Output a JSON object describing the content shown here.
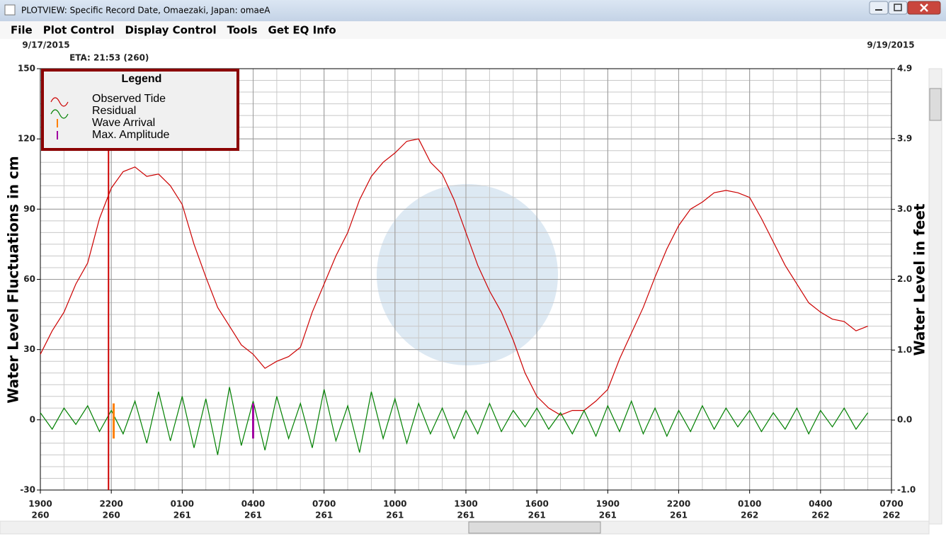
{
  "window": {
    "title": "PLOTVIEW: Specific Record Date, Omaezaki, Japan: omaeA",
    "menu": [
      "File",
      "Plot Control",
      "Display Control",
      "Tools",
      "Get EQ Info"
    ]
  },
  "chart_data": {
    "type": "line",
    "start_date": "9/17/2015",
    "end_date": "9/19/2015",
    "legend_title": "Legend",
    "y_label": "Water Level Fluctuations in cm",
    "y2_label": "Water Level in feet",
    "eta": {
      "label": "ETA: 21:53 (260)",
      "x": 2.883,
      "color": "#cc0000"
    },
    "x": [
      0,
      0.5,
      1,
      1.5,
      2,
      2.5,
      3,
      3.5,
      4,
      4.5,
      5,
      5.5,
      6,
      6.5,
      7,
      7.5,
      8,
      8.5,
      9,
      9.5,
      10,
      10.5,
      11,
      11.5,
      12,
      12.5,
      13,
      13.5,
      14,
      14.5,
      15,
      15.5,
      16,
      16.5,
      17,
      17.5,
      18,
      18.5,
      19,
      19.5,
      20,
      20.5,
      21,
      21.5,
      22,
      22.5,
      23,
      23.5,
      24,
      24.5,
      25,
      25.5,
      26,
      26.5,
      27,
      27.5,
      28,
      28.5,
      29,
      29.5,
      30,
      30.5,
      31,
      31.5,
      32,
      32.5,
      33,
      33.5,
      34,
      34.5,
      35
    ],
    "series": [
      {
        "name": "Observed Tide",
        "color": "#cc0000",
        "values": [
          28,
          38,
          46,
          58,
          67,
          86,
          99,
          106,
          108,
          104,
          105,
          100,
          92,
          75,
          61,
          48,
          40,
          32,
          28,
          22,
          25,
          27,
          31,
          46,
          58,
          70,
          80,
          94,
          104,
          110,
          114,
          119,
          120,
          110,
          105,
          94,
          80,
          66,
          55,
          46,
          34,
          20,
          10,
          5,
          2,
          4,
          4,
          8,
          13,
          26,
          37,
          48,
          61,
          73,
          83,
          90,
          93,
          97,
          98,
          97,
          95,
          86,
          76,
          66,
          58,
          50,
          46,
          43,
          42,
          38,
          40
        ]
      },
      {
        "name": "Residual",
        "color": "#008000",
        "values": [
          3,
          -4,
          5,
          -2,
          6,
          -5,
          4,
          -6,
          8,
          -10,
          12,
          -9,
          10,
          -12,
          9,
          -15,
          14,
          -11,
          8,
          -13,
          10,
          -8,
          7,
          -12,
          13,
          -9,
          6,
          -14,
          12,
          -8,
          9,
          -10,
          7,
          -6,
          5,
          -8,
          4,
          -6,
          7,
          -5,
          4,
          -3,
          5,
          -4,
          3,
          -6,
          4,
          -7,
          6,
          -5,
          8,
          -6,
          5,
          -7,
          4,
          -5,
          6,
          -4,
          5,
          -3,
          4,
          -5,
          3,
          -4,
          5,
          -6,
          4,
          -3,
          5,
          -4,
          3
        ]
      }
    ],
    "markers": [
      {
        "name": "Wave Arrival",
        "color": "#ff8000",
        "x": 3.1,
        "values": [
          7,
          -8
        ]
      },
      {
        "name": "Max. Amplitude",
        "color": "#a000a0",
        "x": 9.0,
        "values": [
          7,
          -8
        ]
      }
    ],
    "xlim": [
      0,
      36
    ],
    "xticks": [
      {
        "value": 0,
        "label": "1900",
        "day": "260"
      },
      {
        "value": 3,
        "label": "2200",
        "day": "260"
      },
      {
        "value": 6,
        "label": "0100",
        "day": "261"
      },
      {
        "value": 9,
        "label": "0400",
        "day": "261"
      },
      {
        "value": 12,
        "label": "0700",
        "day": "261"
      },
      {
        "value": 15,
        "label": "1000",
        "day": "261"
      },
      {
        "value": 18,
        "label": "1300",
        "day": "261"
      },
      {
        "value": 21,
        "label": "1600",
        "day": "261"
      },
      {
        "value": 24,
        "label": "1900",
        "day": "261"
      },
      {
        "value": 27,
        "label": "2200",
        "day": "261"
      },
      {
        "value": 30,
        "label": "0100",
        "day": "262"
      },
      {
        "value": 33,
        "label": "0400",
        "day": "262"
      },
      {
        "value": 36,
        "label": "0700",
        "day": "262"
      }
    ],
    "ylim": [
      -30,
      150
    ],
    "yticks": [
      -30,
      0,
      30,
      60,
      90,
      120,
      150
    ],
    "y2lim": [
      -0.98,
      4.92
    ],
    "y2ticks": [
      {
        "value": -0.98,
        "label": "-1.0"
      },
      {
        "value": 0,
        "label": "0.0"
      },
      {
        "value": 0.98,
        "label": "1.0"
      },
      {
        "value": 1.97,
        "label": "2.0"
      },
      {
        "value": 2.95,
        "label": "3.0"
      },
      {
        "value": 3.94,
        "label": "3.9"
      },
      {
        "value": 4.92,
        "label": "4.9"
      }
    ],
    "grid": true
  }
}
